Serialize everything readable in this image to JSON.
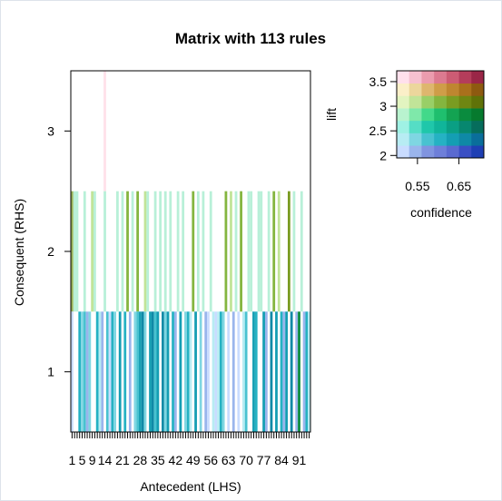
{
  "chart_data": {
    "type": "heatmap",
    "title": "Matrix with 113 rules",
    "xlabel": "Antecedent (LHS)",
    "ylabel": "Consequent (RHS)",
    "xlim": [
      0.5,
      95.5
    ],
    "ylim": [
      0.5,
      3.5
    ],
    "x_ticks": [
      "1",
      "5",
      "9",
      "14",
      "21",
      "28",
      "35",
      "42",
      "49",
      "56",
      "63",
      "70",
      "77",
      "84",
      "91"
    ],
    "x_tick_values": [
      1,
      5,
      9,
      14,
      21,
      28,
      35,
      42,
      49,
      56,
      63,
      70,
      77,
      84,
      91
    ],
    "y_ticks": [
      "1",
      "2",
      "3"
    ],
    "y_tick_values": [
      1,
      2,
      3
    ],
    "legend": {
      "xlabel": "confidence",
      "ylabel": "lift",
      "x_ticks": [
        "0.55",
        "0.65"
      ],
      "x_tick_values": [
        0.55,
        0.65
      ],
      "y_ticks": [
        "2",
        "2.5",
        "3",
        "3.5"
      ],
      "y_tick_values": [
        2,
        2.5,
        3,
        3.5
      ],
      "xlim": [
        0.5,
        0.71
      ],
      "ylim": [
        1.95,
        3.72
      ],
      "cols": 7,
      "rows": 7,
      "colors": [
        [
          "#c9dcff",
          "#9ab5ec",
          "#8094e0",
          "#6e7fd9",
          "#5a6ad0",
          "#3a4fc4",
          "#1f3fb4"
        ],
        [
          "#b7ecf3",
          "#7fd6e2",
          "#48c2d0",
          "#25b2c3",
          "#149eb3",
          "#0f89a6",
          "#0a6e9b"
        ],
        [
          "#9ff1e4",
          "#55ddc5",
          "#1fc7aa",
          "#10b59a",
          "#0a9f84",
          "#07876f",
          "#066d5c"
        ],
        [
          "#b9f3cf",
          "#7fe8aa",
          "#42d98a",
          "#1fbf6e",
          "#13a352",
          "#0a8b3e",
          "#067a2e"
        ],
        [
          "#e2f4c0",
          "#c1e498",
          "#99cf67",
          "#84b53f",
          "#7a9c22",
          "#6f8612",
          "#607208"
        ],
        [
          "#fbefc8",
          "#ecd69c",
          "#deb66e",
          "#cf9d48",
          "#bf8630",
          "#a9701c",
          "#8e5a10"
        ],
        [
          "#ffe0ec",
          "#f6c0cf",
          "#eb9cae",
          "#dc7a90",
          "#cc5c74",
          "#b43d5b",
          "#9a2647"
        ]
      ]
    },
    "cells": [
      {
        "rhs": 3,
        "lhs": 14,
        "color": "#ffe1ea"
      },
      {
        "rhs": 2,
        "lhs": 1,
        "color": "#99b55a"
      },
      {
        "rhs": 2,
        "lhs": 2,
        "color": "#b8f0d8"
      },
      {
        "rhs": 2,
        "lhs": 3,
        "color": "#b8f0d8"
      },
      {
        "rhs": 2,
        "lhs": 6,
        "color": "#b8f0d8"
      },
      {
        "rhs": 2,
        "lhs": 9,
        "color": "#c1e498"
      },
      {
        "rhs": 2,
        "lhs": 10,
        "color": "#b8f0d8"
      },
      {
        "rhs": 2,
        "lhs": 14,
        "color": "#b8f0d8"
      },
      {
        "rhs": 2,
        "lhs": 19,
        "color": "#b8f0d8"
      },
      {
        "rhs": 2,
        "lhs": 21,
        "color": "#b8f0d8"
      },
      {
        "rhs": 2,
        "lhs": 23,
        "color": "#84b53f"
      },
      {
        "rhs": 2,
        "lhs": 25,
        "color": "#b8f0d8"
      },
      {
        "rhs": 2,
        "lhs": 27,
        "color": "#84b53f"
      },
      {
        "rhs": 2,
        "lhs": 30,
        "color": "#c1e498"
      },
      {
        "rhs": 2,
        "lhs": 31,
        "color": "#b8f0d8"
      },
      {
        "rhs": 2,
        "lhs": 34,
        "color": "#b8f0d8"
      },
      {
        "rhs": 2,
        "lhs": 36,
        "color": "#b8f0d8"
      },
      {
        "rhs": 2,
        "lhs": 38,
        "color": "#b8f0d8"
      },
      {
        "rhs": 2,
        "lhs": 40,
        "color": "#b8f0d8"
      },
      {
        "rhs": 2,
        "lhs": 43,
        "color": "#b8f0d8"
      },
      {
        "rhs": 2,
        "lhs": 45,
        "color": "#b8f0d8"
      },
      {
        "rhs": 2,
        "lhs": 49,
        "color": "#84b53f"
      },
      {
        "rhs": 2,
        "lhs": 51,
        "color": "#b8f0d8"
      },
      {
        "rhs": 2,
        "lhs": 53,
        "color": "#b8f0d8"
      },
      {
        "rhs": 2,
        "lhs": 56,
        "color": "#b8f0d8"
      },
      {
        "rhs": 2,
        "lhs": 62,
        "color": "#84b53f"
      },
      {
        "rhs": 2,
        "lhs": 64,
        "color": "#c1e498"
      },
      {
        "rhs": 2,
        "lhs": 66,
        "color": "#b8f0d8"
      },
      {
        "rhs": 2,
        "lhs": 68,
        "color": "#84b53f"
      },
      {
        "rhs": 2,
        "lhs": 71,
        "color": "#b8f0d8"
      },
      {
        "rhs": 2,
        "lhs": 72,
        "color": "#b8f0d8"
      },
      {
        "rhs": 2,
        "lhs": 75,
        "color": "#b8f0d8"
      },
      {
        "rhs": 2,
        "lhs": 76,
        "color": "#b8f0d8"
      },
      {
        "rhs": 2,
        "lhs": 79,
        "color": "#b8f0d8"
      },
      {
        "rhs": 2,
        "lhs": 81,
        "color": "#84b53f"
      },
      {
        "rhs": 2,
        "lhs": 83,
        "color": "#c1e498"
      },
      {
        "rhs": 2,
        "lhs": 87,
        "color": "#7a9c22"
      },
      {
        "rhs": 2,
        "lhs": 89,
        "color": "#b8f0d8"
      },
      {
        "rhs": 2,
        "lhs": 92,
        "color": "#b8f0d8"
      },
      {
        "rhs": 1,
        "lhs": 1,
        "color": "#c9dcff"
      },
      {
        "rhs": 1,
        "lhs": 4,
        "color": "#25b2c3"
      },
      {
        "rhs": 1,
        "lhs": 5,
        "color": "#7fd6e2"
      },
      {
        "rhs": 1,
        "lhs": 6,
        "color": "#48c2d0"
      },
      {
        "rhs": 1,
        "lhs": 7,
        "color": "#9ab5ec"
      },
      {
        "rhs": 1,
        "lhs": 8,
        "color": "#7fd6e2"
      },
      {
        "rhs": 1,
        "lhs": 11,
        "color": "#25b2c3"
      },
      {
        "rhs": 1,
        "lhs": 12,
        "color": "#b7ecf3"
      },
      {
        "rhs": 1,
        "lhs": 13,
        "color": "#9ab5ec"
      },
      {
        "rhs": 1,
        "lhs": 15,
        "color": "#48c2d0"
      },
      {
        "rhs": 1,
        "lhs": 16,
        "color": "#c9dcff"
      },
      {
        "rhs": 1,
        "lhs": 17,
        "color": "#25b2c3"
      },
      {
        "rhs": 1,
        "lhs": 18,
        "color": "#7fd6e2"
      },
      {
        "rhs": 1,
        "lhs": 20,
        "color": "#149eb3"
      },
      {
        "rhs": 1,
        "lhs": 22,
        "color": "#25b2c3"
      },
      {
        "rhs": 1,
        "lhs": 24,
        "color": "#9ab5ec"
      },
      {
        "rhs": 1,
        "lhs": 26,
        "color": "#7fd6e2"
      },
      {
        "rhs": 1,
        "lhs": 27,
        "color": "#48c2d0"
      },
      {
        "rhs": 1,
        "lhs": 28,
        "color": "#149eb3"
      },
      {
        "rhs": 1,
        "lhs": 29,
        "color": "#0f89a6"
      },
      {
        "rhs": 1,
        "lhs": 30,
        "color": "#7fd6e2"
      },
      {
        "rhs": 1,
        "lhs": 32,
        "color": "#149eb3"
      },
      {
        "rhs": 1,
        "lhs": 33,
        "color": "#0f89a6"
      },
      {
        "rhs": 1,
        "lhs": 34,
        "color": "#48c2d0"
      },
      {
        "rhs": 1,
        "lhs": 35,
        "color": "#149eb3"
      },
      {
        "rhs": 1,
        "lhs": 37,
        "color": "#0f89a6"
      },
      {
        "rhs": 1,
        "lhs": 38,
        "color": "#7fd6e2"
      },
      {
        "rhs": 1,
        "lhs": 39,
        "color": "#149eb3"
      },
      {
        "rhs": 1,
        "lhs": 41,
        "color": "#25b2c3"
      },
      {
        "rhs": 1,
        "lhs": 42,
        "color": "#9ab5ec"
      },
      {
        "rhs": 1,
        "lhs": 44,
        "color": "#149eb3"
      },
      {
        "rhs": 1,
        "lhs": 46,
        "color": "#7fd6e2"
      },
      {
        "rhs": 1,
        "lhs": 47,
        "color": "#25b2c3"
      },
      {
        "rhs": 1,
        "lhs": 48,
        "color": "#b7ecf3"
      },
      {
        "rhs": 1,
        "lhs": 50,
        "color": "#149eb3"
      },
      {
        "rhs": 1,
        "lhs": 52,
        "color": "#7fd6e2"
      },
      {
        "rhs": 1,
        "lhs": 54,
        "color": "#9ab5ec"
      },
      {
        "rhs": 1,
        "lhs": 55,
        "color": "#c9dcff"
      },
      {
        "rhs": 1,
        "lhs": 57,
        "color": "#b7ecf3"
      },
      {
        "rhs": 1,
        "lhs": 58,
        "color": "#c9dcff"
      },
      {
        "rhs": 1,
        "lhs": 59,
        "color": "#b7ecf3"
      },
      {
        "rhs": 1,
        "lhs": 60,
        "color": "#25b2c3"
      },
      {
        "rhs": 1,
        "lhs": 61,
        "color": "#7fd6e2"
      },
      {
        "rhs": 1,
        "lhs": 63,
        "color": "#c9dcff"
      },
      {
        "rhs": 1,
        "lhs": 65,
        "color": "#9ab5ec"
      },
      {
        "rhs": 1,
        "lhs": 67,
        "color": "#c9dcff"
      },
      {
        "rhs": 1,
        "lhs": 69,
        "color": "#b7ecf3"
      },
      {
        "rhs": 1,
        "lhs": 70,
        "color": "#48c2d0"
      },
      {
        "rhs": 1,
        "lhs": 73,
        "color": "#149eb3"
      },
      {
        "rhs": 1,
        "lhs": 74,
        "color": "#25b2c3"
      },
      {
        "rhs": 1,
        "lhs": 77,
        "color": "#149eb3"
      },
      {
        "rhs": 1,
        "lhs": 78,
        "color": "#9ab5ec"
      },
      {
        "rhs": 1,
        "lhs": 80,
        "color": "#0f89a6"
      },
      {
        "rhs": 1,
        "lhs": 82,
        "color": "#149eb3"
      },
      {
        "rhs": 1,
        "lhs": 84,
        "color": "#25b2c3"
      },
      {
        "rhs": 1,
        "lhs": 85,
        "color": "#9ab5ec"
      },
      {
        "rhs": 1,
        "lhs": 86,
        "color": "#149eb3"
      },
      {
        "rhs": 1,
        "lhs": 88,
        "color": "#0f89a6"
      },
      {
        "rhs": 1,
        "lhs": 90,
        "color": "#9ab5ec"
      },
      {
        "rhs": 1,
        "lhs": 91,
        "color": "#0a8b3e"
      },
      {
        "rhs": 1,
        "lhs": 93,
        "color": "#9ab5ec"
      },
      {
        "rhs": 1,
        "lhs": 94,
        "color": "#25b2c3"
      },
      {
        "rhs": 1,
        "lhs": 95,
        "color": "#b7ecf3"
      }
    ]
  }
}
